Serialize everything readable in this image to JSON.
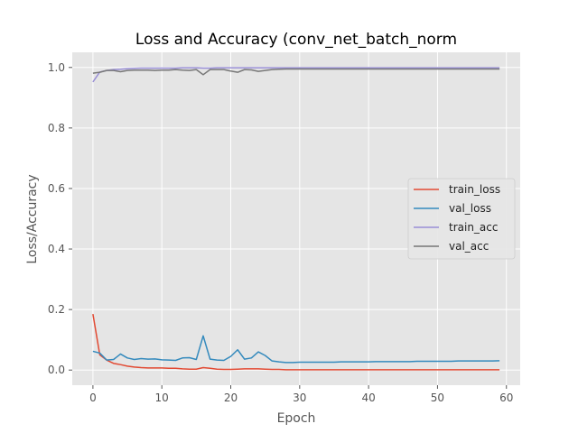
{
  "chart_data": {
    "type": "line",
    "title": "Loss and Accuracy (conv_net_batch_norm",
    "xlabel": "Epoch",
    "ylabel": "Loss/Accuracy",
    "xlim": [
      -3,
      62
    ],
    "ylim": [
      -0.05,
      1.05
    ],
    "xticks": [
      0,
      10,
      20,
      30,
      40,
      50,
      60
    ],
    "yticks": [
      0.0,
      0.2,
      0.4,
      0.6,
      0.8,
      1.0
    ],
    "xtick_labels": [
      "0",
      "10",
      "20",
      "30",
      "40",
      "50",
      "60"
    ],
    "ytick_labels": [
      "0.0",
      "0.2",
      "0.4",
      "0.6",
      "0.8",
      "1.0"
    ],
    "grid": true,
    "legend_position": "center-right",
    "x": [
      0,
      1,
      2,
      3,
      4,
      5,
      6,
      7,
      8,
      9,
      10,
      11,
      12,
      13,
      14,
      15,
      16,
      17,
      18,
      19,
      20,
      21,
      22,
      23,
      24,
      25,
      26,
      27,
      28,
      29,
      30,
      31,
      32,
      33,
      34,
      35,
      36,
      37,
      38,
      39,
      40,
      41,
      42,
      43,
      44,
      45,
      46,
      47,
      48,
      49,
      50,
      51,
      52,
      53,
      54,
      55,
      56,
      57,
      58,
      59
    ],
    "series": [
      {
        "name": "train_loss",
        "color": "#E24A33",
        "values": [
          0.185,
          0.05,
          0.033,
          0.022,
          0.018,
          0.013,
          0.01,
          0.008,
          0.007,
          0.007,
          0.007,
          0.006,
          0.006,
          0.004,
          0.003,
          0.003,
          0.008,
          0.006,
          0.003,
          0.002,
          0.002,
          0.003,
          0.004,
          0.004,
          0.004,
          0.003,
          0.002,
          0.002,
          0.001,
          0.001,
          0.001,
          0.001,
          0.001,
          0.001,
          0.001,
          0.001,
          0.001,
          0.001,
          0.001,
          0.001,
          0.001,
          0.001,
          0.001,
          0.001,
          0.001,
          0.001,
          0.001,
          0.001,
          0.001,
          0.001,
          0.001,
          0.001,
          0.001,
          0.001,
          0.001,
          0.001,
          0.001,
          0.001,
          0.001,
          0.001
        ]
      },
      {
        "name": "val_loss",
        "color": "#348ABD",
        "values": [
          0.062,
          0.056,
          0.033,
          0.035,
          0.053,
          0.04,
          0.035,
          0.038,
          0.036,
          0.037,
          0.034,
          0.033,
          0.032,
          0.04,
          0.041,
          0.035,
          0.113,
          0.036,
          0.033,
          0.032,
          0.045,
          0.067,
          0.036,
          0.04,
          0.06,
          0.048,
          0.03,
          0.027,
          0.025,
          0.025,
          0.026,
          0.026,
          0.026,
          0.026,
          0.026,
          0.026,
          0.027,
          0.027,
          0.027,
          0.027,
          0.027,
          0.028,
          0.028,
          0.028,
          0.028,
          0.028,
          0.028,
          0.029,
          0.029,
          0.029,
          0.029,
          0.029,
          0.029,
          0.03,
          0.03,
          0.03,
          0.03,
          0.03,
          0.03,
          0.031
        ]
      },
      {
        "name": "train_acc",
        "color": "#988ED5",
        "values": [
          0.952,
          0.985,
          0.99,
          0.993,
          0.994,
          0.996,
          0.997,
          0.998,
          0.998,
          0.998,
          0.998,
          0.998,
          0.998,
          0.999,
          0.999,
          0.999,
          0.998,
          0.998,
          0.999,
          0.999,
          0.999,
          0.999,
          0.999,
          0.999,
          0.999,
          0.999,
          0.999,
          0.999,
          0.999,
          0.999,
          0.999,
          0.999,
          0.999,
          0.999,
          0.999,
          0.999,
          0.999,
          0.999,
          0.999,
          0.999,
          0.999,
          0.999,
          0.999,
          0.999,
          0.999,
          0.999,
          0.999,
          0.999,
          0.999,
          0.999,
          0.999,
          0.999,
          0.999,
          0.999,
          0.999,
          0.999,
          0.999,
          0.999,
          0.999,
          0.999
        ]
      },
      {
        "name": "val_acc",
        "color": "#777777",
        "values": [
          0.981,
          0.984,
          0.99,
          0.99,
          0.986,
          0.99,
          0.991,
          0.991,
          0.991,
          0.99,
          0.991,
          0.991,
          0.993,
          0.991,
          0.99,
          0.993,
          0.976,
          0.993,
          0.993,
          0.993,
          0.988,
          0.984,
          0.993,
          0.992,
          0.987,
          0.99,
          0.993,
          0.994,
          0.995,
          0.995,
          0.995,
          0.995,
          0.995,
          0.995,
          0.995,
          0.995,
          0.995,
          0.995,
          0.995,
          0.995,
          0.995,
          0.995,
          0.995,
          0.995,
          0.995,
          0.995,
          0.995,
          0.995,
          0.995,
          0.995,
          0.995,
          0.995,
          0.995,
          0.995,
          0.995,
          0.995,
          0.995,
          0.995,
          0.995,
          0.995
        ]
      }
    ]
  }
}
